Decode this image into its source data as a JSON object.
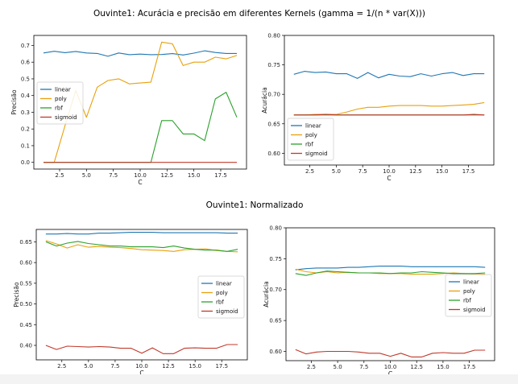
{
  "titles": {
    "top": "Ouvinte1: Acurácia e precisão em diferentes Kernels (gamma = 1/(n * var(X)))",
    "bottom": "Ouvinte1: Normalizado"
  },
  "colors": {
    "linear": "#1f77b4",
    "poly": "#e8a10c",
    "rbf": "#2ca02c",
    "sigmoid": "#c0392b"
  },
  "chart_data": [
    {
      "type": "line",
      "title": "",
      "xlabel": "C",
      "ylabel": "Precisão",
      "xlim": [
        0.1,
        19.9
      ],
      "ylim": [
        -0.04,
        0.76
      ],
      "xticks": [
        2.5,
        5.0,
        7.5,
        10.0,
        12.5,
        15.0,
        17.5
      ],
      "xtick_labels": [
        "2.5",
        "5.0",
        "7.5",
        "10.0",
        "12.5",
        "15.0",
        "17.5"
      ],
      "yticks": [
        0.0,
        0.1,
        0.2,
        0.3,
        0.4,
        0.5,
        0.6,
        0.7
      ],
      "ytick_labels": [
        "0.0",
        "0.1",
        "0.2",
        "0.3",
        "0.4",
        "0.5",
        "0.6",
        "0.7"
      ],
      "legend_position": "center-left",
      "x": [
        1,
        2,
        3,
        4,
        5,
        6,
        7,
        8,
        9,
        10,
        11,
        12,
        13,
        14,
        15,
        16,
        17,
        18,
        19
      ],
      "series": [
        {
          "name": "linear",
          "values": [
            0.655,
            0.665,
            0.657,
            0.664,
            0.655,
            0.652,
            0.635,
            0.655,
            0.645,
            0.648,
            0.645,
            0.646,
            0.651,
            0.643,
            0.654,
            0.668,
            0.658,
            0.652,
            0.652
          ]
        },
        {
          "name": "poly",
          "values": [
            0.0,
            0.0,
            0.22,
            0.43,
            0.27,
            0.45,
            0.49,
            0.5,
            0.47,
            0.475,
            0.48,
            0.72,
            0.71,
            0.58,
            0.6,
            0.6,
            0.63,
            0.62,
            0.64
          ]
        },
        {
          "name": "rbf",
          "values": [
            0.0,
            0.0,
            0.0,
            0.0,
            0.0,
            0.0,
            0.0,
            0.0,
            0.0,
            0.0,
            0.0,
            0.25,
            0.25,
            0.17,
            0.17,
            0.13,
            0.38,
            0.42,
            0.27
          ]
        },
        {
          "name": "sigmoid",
          "values": [
            0.0,
            0.0,
            0.0,
            0.0,
            0.0,
            0.0,
            0.0,
            0.0,
            0.0,
            0.0,
            0.0,
            0.0,
            0.0,
            0.0,
            0.0,
            0.0,
            0.0,
            0.0,
            0.0
          ]
        }
      ]
    },
    {
      "type": "line",
      "title": "",
      "xlabel": "C",
      "ylabel": "Acurácia",
      "xlim": [
        0.1,
        19.9
      ],
      "ylim": [
        0.58,
        0.8
      ],
      "xticks": [
        2.5,
        5.0,
        7.5,
        10.0,
        12.5,
        15.0,
        17.5
      ],
      "xtick_labels": [
        "2.5",
        "5.0",
        "7.5",
        "10.0",
        "12.5",
        "15.0",
        "17.5"
      ],
      "yticks": [
        0.6,
        0.65,
        0.7,
        0.75,
        0.8
      ],
      "ytick_labels": [
        "0.60",
        "0.65",
        "0.70",
        "0.75",
        "0.80"
      ],
      "legend_position": "lower-left",
      "x": [
        1,
        2,
        3,
        4,
        5,
        6,
        7,
        8,
        9,
        10,
        11,
        12,
        13,
        14,
        15,
        16,
        17,
        18,
        19
      ],
      "series": [
        {
          "name": "linear",
          "values": [
            0.734,
            0.739,
            0.737,
            0.738,
            0.735,
            0.735,
            0.727,
            0.737,
            0.728,
            0.734,
            0.731,
            0.73,
            0.735,
            0.731,
            0.735,
            0.737,
            0.732,
            0.735,
            0.735
          ]
        },
        {
          "name": "poly",
          "values": [
            0.665,
            0.665,
            0.666,
            0.666,
            0.666,
            0.67,
            0.675,
            0.678,
            0.678,
            0.68,
            0.681,
            0.681,
            0.681,
            0.68,
            0.68,
            0.681,
            0.682,
            0.683,
            0.686
          ]
        },
        {
          "name": "rbf",
          "values": [
            0.665,
            0.665,
            0.665,
            0.665,
            0.665,
            0.665,
            0.665,
            0.665,
            0.665,
            0.665,
            0.665,
            0.665,
            0.665,
            0.665,
            0.665,
            0.665,
            0.665,
            0.665,
            0.665
          ]
        },
        {
          "name": "sigmoid",
          "values": [
            0.665,
            0.665,
            0.665,
            0.666,
            0.665,
            0.665,
            0.665,
            0.665,
            0.665,
            0.665,
            0.665,
            0.665,
            0.665,
            0.665,
            0.665,
            0.665,
            0.665,
            0.666,
            0.665
          ]
        }
      ]
    },
    {
      "type": "line",
      "title": "",
      "xlabel": "C",
      "ylabel": "Precisão",
      "xlim": [
        0.1,
        19.9
      ],
      "ylim": [
        0.365,
        0.68
      ],
      "xticks": [
        2.5,
        5.0,
        7.5,
        10.0,
        12.5,
        15.0,
        17.5
      ],
      "xtick_labels": [
        "2.5",
        "5.0",
        "7.5",
        "10.0",
        "12.5",
        "15.0",
        "17.5"
      ],
      "yticks": [
        0.4,
        0.45,
        0.5,
        0.55,
        0.6,
        0.65
      ],
      "ytick_labels": [
        "0.40",
        "0.45",
        "0.50",
        "0.55",
        "0.60",
        "0.65"
      ],
      "legend_position": "center-right",
      "x": [
        1,
        2,
        3,
        4,
        5,
        6,
        7,
        8,
        9,
        10,
        11,
        12,
        13,
        14,
        15,
        16,
        17,
        18,
        19
      ],
      "series": [
        {
          "name": "linear",
          "values": [
            0.669,
            0.669,
            0.67,
            0.669,
            0.669,
            0.671,
            0.671,
            0.672,
            0.673,
            0.673,
            0.673,
            0.672,
            0.672,
            0.672,
            0.672,
            0.672,
            0.672,
            0.671,
            0.671
          ]
        },
        {
          "name": "poly",
          "values": [
            0.653,
            0.645,
            0.635,
            0.643,
            0.637,
            0.639,
            0.637,
            0.636,
            0.634,
            0.631,
            0.63,
            0.629,
            0.627,
            0.631,
            0.632,
            0.633,
            0.629,
            0.627,
            0.626
          ]
        },
        {
          "name": "rbf",
          "values": [
            0.65,
            0.64,
            0.647,
            0.651,
            0.646,
            0.643,
            0.64,
            0.64,
            0.638,
            0.638,
            0.638,
            0.636,
            0.64,
            0.635,
            0.632,
            0.63,
            0.63,
            0.627,
            0.632
          ]
        },
        {
          "name": "sigmoid",
          "values": [
            0.4,
            0.39,
            0.398,
            0.397,
            0.396,
            0.397,
            0.396,
            0.393,
            0.393,
            0.381,
            0.394,
            0.38,
            0.38,
            0.393,
            0.394,
            0.393,
            0.393,
            0.402,
            0.402
          ]
        }
      ]
    },
    {
      "type": "line",
      "title": "",
      "xlabel": "C",
      "ylabel": "Acurácia",
      "xlim": [
        0.1,
        19.9
      ],
      "ylim": [
        0.585,
        0.8
      ],
      "xticks": [
        2.5,
        5.0,
        7.5,
        10.0,
        12.5,
        15.0,
        17.5
      ],
      "xtick_labels": [
        "2.5",
        "5.0",
        "7.5",
        "10.0",
        "12.5",
        "15.0",
        "17.5"
      ],
      "yticks": [
        0.6,
        0.65,
        0.7,
        0.75,
        0.8
      ],
      "ytick_labels": [
        "0.60",
        "0.65",
        "0.70",
        "0.75",
        "0.80"
      ],
      "legend_position": "center-right",
      "x": [
        1,
        2,
        3,
        4,
        5,
        6,
        7,
        8,
        9,
        10,
        11,
        12,
        13,
        14,
        15,
        16,
        17,
        18,
        19
      ],
      "series": [
        {
          "name": "linear",
          "values": [
            0.732,
            0.734,
            0.735,
            0.735,
            0.735,
            0.736,
            0.736,
            0.737,
            0.738,
            0.738,
            0.738,
            0.737,
            0.737,
            0.737,
            0.737,
            0.737,
            0.737,
            0.737,
            0.736
          ]
        },
        {
          "name": "poly",
          "values": [
            0.733,
            0.729,
            0.727,
            0.729,
            0.727,
            0.728,
            0.727,
            0.727,
            0.726,
            0.726,
            0.726,
            0.725,
            0.725,
            0.725,
            0.726,
            0.727,
            0.726,
            0.725,
            0.725
          ]
        },
        {
          "name": "rbf",
          "values": [
            0.726,
            0.723,
            0.727,
            0.73,
            0.729,
            0.728,
            0.727,
            0.727,
            0.727,
            0.726,
            0.727,
            0.727,
            0.729,
            0.728,
            0.727,
            0.726,
            0.726,
            0.726,
            0.727
          ]
        },
        {
          "name": "sigmoid",
          "values": [
            0.603,
            0.596,
            0.599,
            0.6,
            0.6,
            0.6,
            0.599,
            0.597,
            0.597,
            0.592,
            0.597,
            0.591,
            0.591,
            0.597,
            0.598,
            0.597,
            0.597,
            0.602,
            0.602
          ]
        }
      ]
    }
  ]
}
